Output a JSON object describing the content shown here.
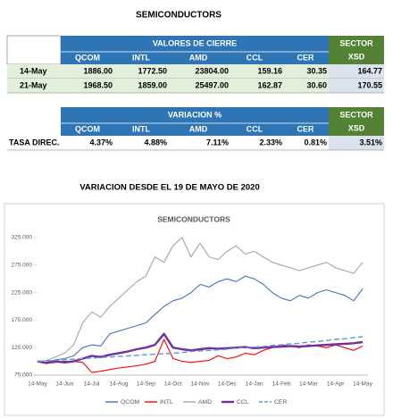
{
  "title": "SEMICONDUCTORS",
  "table1": {
    "header": "VALORES DE CIERRE",
    "sector": [
      "SECTOR",
      "XSD"
    ],
    "columns": [
      "QCOM",
      "INTL",
      "AMD",
      "CCL",
      "CER"
    ],
    "rows": [
      [
        "14-May",
        "1886.00",
        "1772.50",
        "23804.00",
        "159.16",
        "30.35",
        "164.77"
      ],
      [
        "21-May",
        "1968.50",
        "1859.00",
        "25497.00",
        "162.87",
        "30.60",
        "170.55"
      ]
    ]
  },
  "table2": {
    "header": "VARIACION %",
    "sector": [
      "SECTOR",
      "XSD"
    ],
    "columns": [
      "QCOM",
      "INTL",
      "AMD",
      "CCL",
      "CER"
    ],
    "rows": [
      [
        "TASA DIREC.",
        "4.37%",
        "4.88%",
        "7.11%",
        "2.33%",
        "0.81%",
        "3.51%"
      ]
    ]
  },
  "chart_heading": "VARIACION DESDE EL 19 DE MAYO DE 2020",
  "chart_data": {
    "type": "line",
    "title": "SEMICONDUCTORS",
    "categories": [
      "14-May",
      null,
      null,
      "14-Jun",
      null,
      null,
      "14-Jul",
      null,
      null,
      "14-Aug",
      null,
      null,
      "14-Sep",
      null,
      null,
      "14-Oct",
      null,
      null,
      "14-Nov",
      null,
      null,
      "14-Dec",
      null,
      null,
      "14-Jan",
      null,
      null,
      "14-Feb",
      null,
      null,
      "14-Mar",
      null,
      null,
      "14-Apr",
      null,
      null,
      "14-May"
    ],
    "ylim": [
      75,
      325
    ],
    "yticks": [
      {
        "value": 75,
        "label": "75.000"
      },
      {
        "value": 125,
        "label": "125.000"
      },
      {
        "value": 175,
        "label": "175.000"
      },
      {
        "value": 225,
        "label": "225.000"
      },
      {
        "value": 275,
        "label": "275.000"
      },
      {
        "value": 325,
        "label": "325.000"
      }
    ],
    "series": [
      {
        "name": "QCOM",
        "color": "#4472c4",
        "values": [
          100,
          98,
          103,
          105,
          110,
          125,
          130,
          128,
          150,
          155,
          160,
          165,
          170,
          185,
          200,
          210,
          215,
          225,
          240,
          235,
          245,
          250,
          245,
          255,
          250,
          240,
          225,
          215,
          210,
          220,
          215,
          225,
          230,
          225,
          220,
          210,
          232
        ]
      },
      {
        "name": "INTL",
        "color": "#ff0000",
        "values": [
          100,
          97,
          98,
          100,
          100,
          98,
          80,
          82,
          85,
          88,
          90,
          92,
          95,
          100,
          140,
          105,
          100,
          98,
          100,
          102,
          110,
          105,
          108,
          115,
          112,
          120,
          125,
          130,
          128,
          125,
          130,
          128,
          125,
          130,
          125,
          120,
          128
        ]
      },
      {
        "name": "AMD",
        "color": "#a5a5a5",
        "values": [
          100,
          102,
          108,
          115,
          130,
          170,
          190,
          180,
          200,
          215,
          230,
          245,
          255,
          290,
          280,
          310,
          325,
          290,
          315,
          290,
          285,
          300,
          310,
          295,
          300,
          290,
          280,
          275,
          270,
          265,
          270,
          275,
          280,
          270,
          265,
          260,
          280
        ]
      },
      {
        "name": "CCL",
        "color": "#7030a0",
        "values": [
          100,
          97,
          100,
          98,
          100,
          105,
          110,
          108,
          112,
          115,
          118,
          122,
          125,
          130,
          150,
          125,
          122,
          120,
          122,
          124,
          123,
          124,
          125,
          126,
          124,
          125,
          126,
          127,
          128,
          127,
          128,
          129,
          130,
          131,
          132,
          133,
          135
        ]
      },
      {
        "name": "CER",
        "color": "#5b9bd5",
        "dashed": true,
        "values": [
          100,
          101,
          102,
          103,
          104,
          105,
          106,
          107,
          108,
          109,
          110,
          111,
          112,
          113,
          114,
          115,
          116,
          118,
          119,
          120,
          121,
          122,
          124,
          125,
          126,
          127,
          129,
          130,
          132,
          133,
          135,
          136,
          138,
          140,
          141,
          143,
          145
        ]
      }
    ]
  }
}
